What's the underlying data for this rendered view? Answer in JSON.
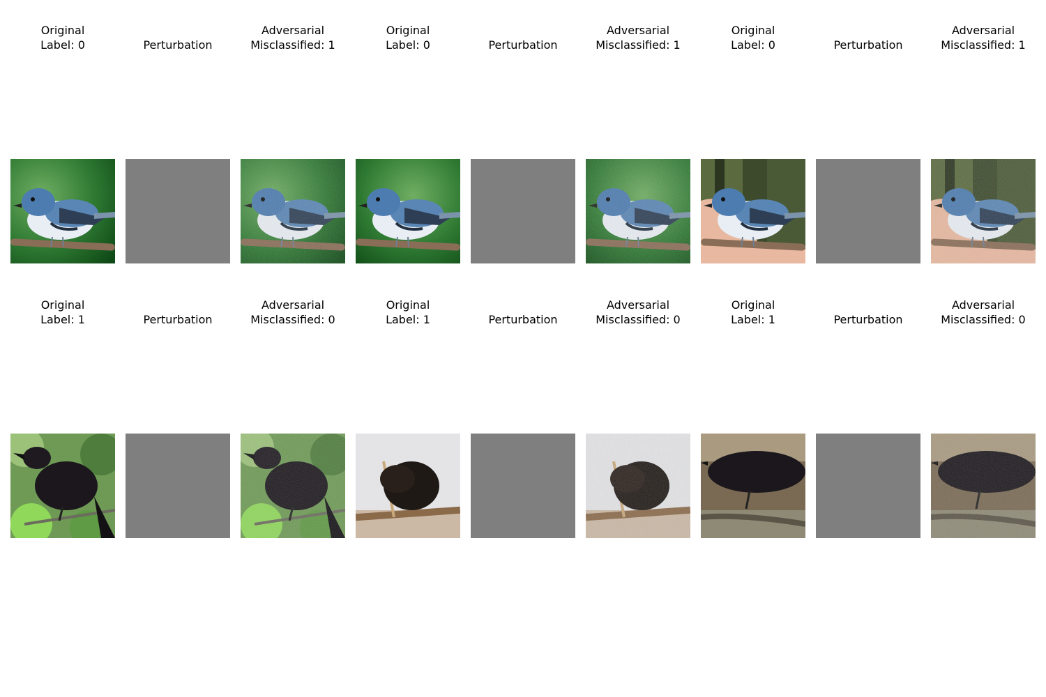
{
  "rows": [
    {
      "panels": [
        {
          "kind": "original",
          "line1": "Original",
          "line2": "Label: 0",
          "subject": "warbler",
          "variant": 1
        },
        {
          "kind": "perturbation",
          "line1": "Perturbation",
          "line2": ""
        },
        {
          "kind": "adversarial",
          "line1": "Adversarial",
          "line2": "Misclassified: 1",
          "subject": "warbler",
          "variant": 1
        },
        {
          "kind": "original",
          "line1": "Original",
          "line2": "Label: 0",
          "subject": "warbler",
          "variant": 2
        },
        {
          "kind": "perturbation",
          "line1": "Perturbation",
          "line2": ""
        },
        {
          "kind": "adversarial",
          "line1": "Adversarial",
          "line2": "Misclassified: 1",
          "subject": "warbler",
          "variant": 2
        },
        {
          "kind": "original",
          "line1": "Original",
          "line2": "Label: 0",
          "subject": "warbler-hand",
          "variant": 3
        },
        {
          "kind": "perturbation",
          "line1": "Perturbation",
          "line2": ""
        },
        {
          "kind": "adversarial",
          "line1": "Adversarial",
          "line2": "Misclassified: 1",
          "subject": "warbler-hand",
          "variant": 3
        }
      ]
    },
    {
      "panels": [
        {
          "kind": "original",
          "line1": "Original",
          "line2": "Label: 1",
          "subject": "crow",
          "variant": 1
        },
        {
          "kind": "perturbation",
          "line1": "Perturbation",
          "line2": ""
        },
        {
          "kind": "adversarial",
          "line1": "Adversarial",
          "line2": "Misclassified: 0",
          "subject": "crow",
          "variant": 1
        },
        {
          "kind": "original",
          "line1": "Original",
          "line2": "Label: 1",
          "subject": "crow",
          "variant": 2
        },
        {
          "kind": "perturbation",
          "line1": "Perturbation",
          "line2": ""
        },
        {
          "kind": "adversarial",
          "line1": "Adversarial",
          "line2": "Misclassified: 0",
          "subject": "crow",
          "variant": 2
        },
        {
          "kind": "original",
          "line1": "Original",
          "line2": "Label: 1",
          "subject": "crow",
          "variant": 3
        },
        {
          "kind": "perturbation",
          "line1": "Perturbation",
          "line2": ""
        },
        {
          "kind": "adversarial",
          "line1": "Adversarial",
          "line2": "Misclassified: 0",
          "subject": "crow",
          "variant": 3
        }
      ]
    }
  ],
  "colors": {
    "perturbation_gray": "#7f7f7f",
    "foliage_green": "#2f7a33",
    "warbler_blue": "#5a86b5",
    "crow_black": "#1b171c"
  }
}
